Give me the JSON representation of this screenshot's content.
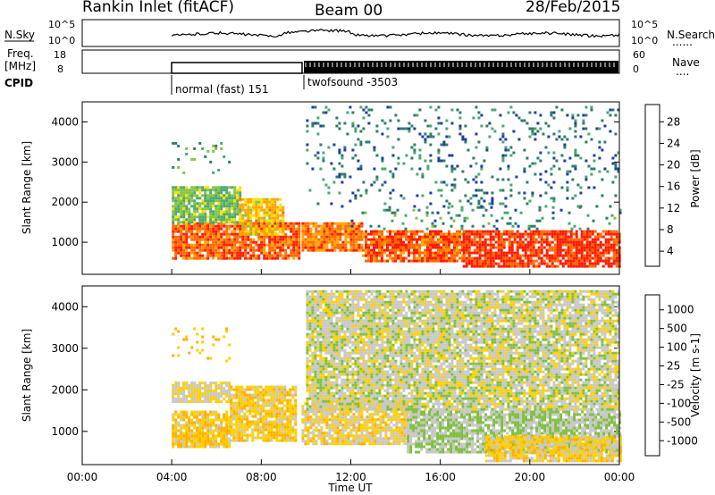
{
  "header": {
    "station": "Rankin Inlet (fitACF)",
    "beam": "Beam 00",
    "date": "28/Feb/2015"
  },
  "status_panels": {
    "nsky": {
      "label": "N.Sky",
      "left_ticks": [
        "10^5",
        "10^0"
      ],
      "right_ticks": [
        "10^5",
        "10^0"
      ],
      "right_label": "N.Search",
      "right_legend": "......"
    },
    "freq": {
      "label_line1": "Freq.",
      "label_line2": "[MHz]",
      "left_ticks": [
        "18",
        "8"
      ],
      "right_ticks": [
        "60",
        "0"
      ],
      "right_label": "Nave",
      "right_legend": "...."
    },
    "cpid": {
      "label": "CPID",
      "segments": [
        {
          "name": "normal (fast) 151",
          "start": "04:00",
          "end": "09:55"
        },
        {
          "name": "twofsound -3503",
          "start": "09:55",
          "end": "24:00"
        }
      ]
    }
  },
  "x_axis": {
    "label": "Time UT",
    "ticks": [
      "00:00",
      "04:00",
      "08:00",
      "12:00",
      "16:00",
      "20:00",
      "00:00"
    ],
    "range_hours": [
      0,
      24
    ]
  },
  "colors": {
    "power_scale": [
      "#0000ff",
      "#1f3fa0",
      "#2e7d6a",
      "#4aa870",
      "#86c440",
      "#ffe000",
      "#ffa500",
      "#ff6a00",
      "#ff1a00"
    ],
    "velocity_scale": [
      "#ff0000",
      "#ff5a00",
      "#ff8c00",
      "#ffb000",
      "#ffd000",
      "#c8c8c8",
      "#80c040",
      "#3e9a4c",
      "#2e7d6a",
      "#1f3fa0"
    ]
  },
  "chart_data": [
    {
      "type": "heatmap",
      "panel": "power",
      "ylabel": "Slant Range [km]",
      "xlabel": "",
      "ylim": [
        200,
        4500
      ],
      "yticks": [
        1000,
        2000,
        3000,
        4000
      ],
      "colorbar": {
        "label": "Power [dB]",
        "ticks": [
          "28",
          "24",
          "20",
          "16",
          "12",
          "8",
          "4"
        ],
        "range": [
          0,
          30
        ]
      },
      "regions": [
        {
          "t0": 4.0,
          "t1": 9.7,
          "r0": 600,
          "r1": 1500,
          "value": 26
        },
        {
          "t0": 4.0,
          "t1": 7.0,
          "r0": 1500,
          "r1": 2400,
          "value": 14
        },
        {
          "t0": 4.0,
          "t1": 6.6,
          "r0": 2700,
          "r1": 3500,
          "value": 12
        },
        {
          "t0": 7.0,
          "t1": 9.0,
          "r0": 1200,
          "r1": 2100,
          "value": 20
        },
        {
          "t0": 9.8,
          "t1": 12.5,
          "r0": 800,
          "r1": 1500,
          "value": 24
        },
        {
          "t0": 12.5,
          "t1": 17.0,
          "r0": 500,
          "r1": 1300,
          "value": 26
        },
        {
          "t0": 17.0,
          "t1": 24.0,
          "r0": 400,
          "r1": 1300,
          "value": 28
        },
        {
          "t0": 12.0,
          "t1": 24.0,
          "r0": 1300,
          "r1": 1900,
          "value": 10
        },
        {
          "t0": 10.0,
          "t1": 24.0,
          "r0": 1900,
          "r1": 4400,
          "value": 8
        }
      ]
    },
    {
      "type": "heatmap",
      "panel": "velocity",
      "ylabel": "Slant Range [km]",
      "xlabel": "Time UT",
      "ylim": [
        200,
        4500
      ],
      "yticks": [
        1000,
        2000,
        3000,
        4000
      ],
      "colorbar": {
        "label": "Velocity [m s-1]",
        "ticks": [
          "1000",
          "500",
          "100",
          "25",
          "-25",
          "-100",
          "-500",
          "-1000"
        ],
        "range": [
          -1000,
          1000
        ]
      },
      "regions": [
        {
          "t0": 4.0,
          "t1": 6.6,
          "r0": 600,
          "r1": 1500,
          "value": 150
        },
        {
          "t0": 4.0,
          "t1": 6.6,
          "r0": 1700,
          "r1": 2200,
          "value": 0
        },
        {
          "t0": 4.0,
          "t1": 6.6,
          "r0": 2700,
          "r1": 3500,
          "value": 200
        },
        {
          "t0": 6.6,
          "t1": 9.5,
          "r0": 800,
          "r1": 2100,
          "value": 120
        },
        {
          "t0": 9.8,
          "t1": 14.5,
          "r0": 700,
          "r1": 1700,
          "value": 60
        },
        {
          "t0": 14.5,
          "t1": 24.0,
          "r0": 500,
          "r1": 1500,
          "value": -200
        },
        {
          "t0": 18.0,
          "t1": 24.0,
          "r0": 300,
          "r1": 900,
          "value": 80
        },
        {
          "t0": 10.0,
          "t1": 24.0,
          "r0": 1500,
          "r1": 4400,
          "value": -100
        }
      ]
    }
  ]
}
